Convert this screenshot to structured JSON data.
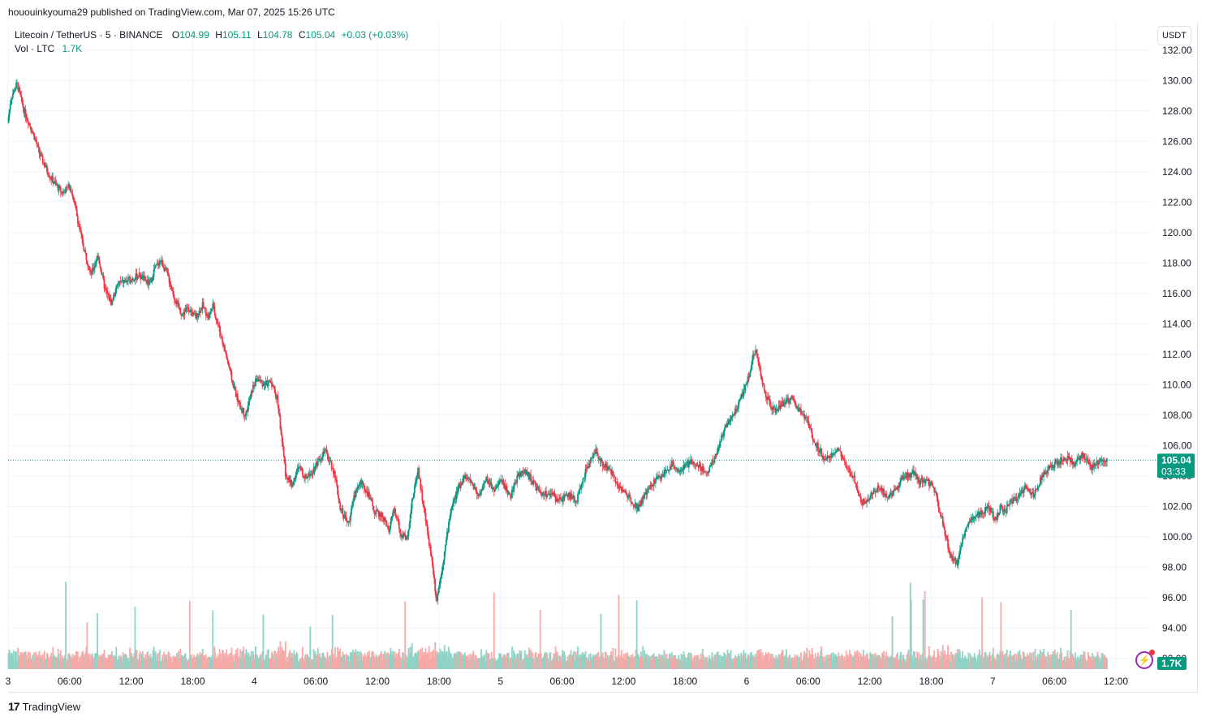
{
  "header": {
    "publish_line": "hououinkyouma29 published on TradingView.com, Mar 07, 2025 15:26 UTC"
  },
  "legend": {
    "symbol": "Litecoin / TetherUS · 5 · BINANCE",
    "o_label": "O",
    "o_value": "104.99",
    "h_label": "H",
    "h_value": "105.11",
    "l_label": "L",
    "l_value": "104.78",
    "c_label": "C",
    "c_value": "105.04",
    "change": "+0.03 (+0.03%)",
    "vol_label": "Vol · LTC",
    "vol_value": "1.7K"
  },
  "toolbar": {
    "currency_button": "USDT"
  },
  "footer": {
    "brand": "TradingView",
    "mark": "17"
  },
  "colors": {
    "up": "#089981",
    "down": "#f23645",
    "vol_up": "#8fd3c6",
    "vol_down": "#f7a9a7",
    "grid": "#f0f3fa",
    "axis_text": "#131722"
  },
  "chart_data": {
    "type": "candlestick",
    "symbol": "Litecoin / TetherUS",
    "interval": "5",
    "exchange": "BINANCE",
    "y_axis_ticks": [
      "132.00",
      "130.00",
      "128.00",
      "126.00",
      "124.00",
      "122.00",
      "120.00",
      "118.00",
      "116.00",
      "114.00",
      "112.00",
      "110.00",
      "108.00",
      "106.00",
      "104.00",
      "102.00",
      "100.00",
      "98.00",
      "96.00",
      "94.00",
      "92.00"
    ],
    "ylim": [
      91.3,
      133.8
    ],
    "x_axis_ticks": [
      "3",
      "06:00",
      "12:00",
      "18:00",
      "4",
      "06:00",
      "12:00",
      "18:00",
      "5",
      "06:00",
      "12:00",
      "18:00",
      "6",
      "06:00",
      "12:00",
      "18:00",
      "7",
      "06:00",
      "12:00"
    ],
    "x_tick_hours": [
      0,
      6,
      12,
      18,
      24,
      30,
      36,
      42,
      48,
      54,
      60,
      66,
      72,
      78,
      84,
      90,
      96,
      102,
      108
    ],
    "x_range_hours": [
      0,
      111.4
    ],
    "last_price": "105.04",
    "last_price_value": 105.04,
    "countdown": "03:33",
    "last_volume_label": "1.7K",
    "price_path_hours": [
      0,
      0.3,
      0.9,
      1.6,
      2.5,
      3.2,
      4.2,
      5.3,
      6.1,
      6.6,
      7.3,
      8.1,
      8.8,
      9.5,
      10.1,
      10.8,
      11.6,
      12.8,
      13.9,
      14.3,
      14.9,
      15.6,
      16.3,
      17.0,
      17.6,
      18.3,
      19.0,
      19.6,
      20.0,
      20.8,
      21.5,
      21.9,
      22.6,
      23.2,
      23.9,
      24.3,
      25.0,
      25.7,
      26.3,
      27.1,
      27.7,
      28.4,
      29.0,
      29.7,
      30.3,
      31.0,
      31.8,
      32.4,
      33.2,
      33.9,
      34.5,
      35.2,
      35.8,
      36.5,
      37.2,
      37.7,
      38.3,
      38.9,
      39.4,
      40.0,
      40.4,
      40.9,
      41.4,
      41.8,
      42.5,
      43.2,
      43.9,
      44.5,
      45.2,
      45.9,
      46.7,
      47.4,
      48.2,
      49.0,
      49.8,
      50.5,
      51.1,
      52.0,
      52.9,
      53.7,
      54.6,
      55.5,
      56.3,
      57.2,
      58.0,
      58.9,
      59.7,
      60.6,
      61.4,
      62.2,
      63.1,
      63.9,
      64.8,
      65.6,
      66.5,
      67.3,
      68.2,
      69.1,
      70.0,
      71.0,
      72.0,
      72.9,
      73.8,
      74.7,
      75.6,
      76.4,
      77.4,
      78.0,
      78.3,
      78.8,
      79.5,
      80.1,
      80.9,
      81.7,
      82.5,
      83.3,
      84.1,
      84.9,
      85.8,
      86.6,
      87.4,
      88.3,
      88.9,
      89.6,
      90.3,
      91.0,
      91.8,
      92.6,
      93.4,
      94.2,
      95.0,
      95.7,
      96.2,
      96.5,
      96.8,
      97.2,
      97.8,
      98.5,
      99.2,
      100.0,
      100.8,
      101.6,
      102.4,
      103.2,
      104.0,
      104.8,
      105.6,
      106.4,
      107.2,
      108.0,
      108.8,
      109.6,
      110.4,
      111.0,
      111.4
    ],
    "price_path_values": [
      127.2,
      128.8,
      129.8,
      128.0,
      126.5,
      125.0,
      123.6,
      122.6,
      123.1,
      121.6,
      119.3,
      117.2,
      118.5,
      116.2,
      115.4,
      116.7,
      116.8,
      117.2,
      116.6,
      117.6,
      118.2,
      117.2,
      115.6,
      114.6,
      115.1,
      114.4,
      115.2,
      114.4,
      115.2,
      113.2,
      111.4,
      110.2,
      108.6,
      108.0,
      109.8,
      110.4,
      110.0,
      110.2,
      109.0,
      104.1,
      103.4,
      104.6,
      103.9,
      104.3,
      105.1,
      105.6,
      104.3,
      102.0,
      100.8,
      103.0,
      103.6,
      102.7,
      101.6,
      101.4,
      100.4,
      101.9,
      100.2,
      99.8,
      102.2,
      104.5,
      102.6,
      100.4,
      98.3,
      95.8,
      98.6,
      101.8,
      103.1,
      104.0,
      103.6,
      102.7,
      103.8,
      103.1,
      103.7,
      102.6,
      104.1,
      104.3,
      103.7,
      102.7,
      102.9,
      102.3,
      102.8,
      102.4,
      104.2,
      105.7,
      104.8,
      104.2,
      103.2,
      102.6,
      101.9,
      102.8,
      103.7,
      104.1,
      104.8,
      104.3,
      104.9,
      104.7,
      104.2,
      105.5,
      107.3,
      108.3,
      110.0,
      112.4,
      109.4,
      108.2,
      108.8,
      109.1,
      108.1,
      107.6,
      106.8,
      106.1,
      105.3,
      105.1,
      105.9,
      104.6,
      103.9,
      102.2,
      102.7,
      103.3,
      102.6,
      103.1,
      104.0,
      104.2,
      103.6,
      103.7,
      103.2,
      101.4,
      99.0,
      98.2,
      100.7,
      101.4,
      101.6,
      101.9,
      101.2,
      101.4,
      102.0,
      101.6,
      102.3,
      102.6,
      103.3,
      102.8,
      103.9,
      104.6,
      104.9,
      105.2,
      104.8,
      105.4,
      104.5,
      105.0,
      105.04
    ]
  }
}
